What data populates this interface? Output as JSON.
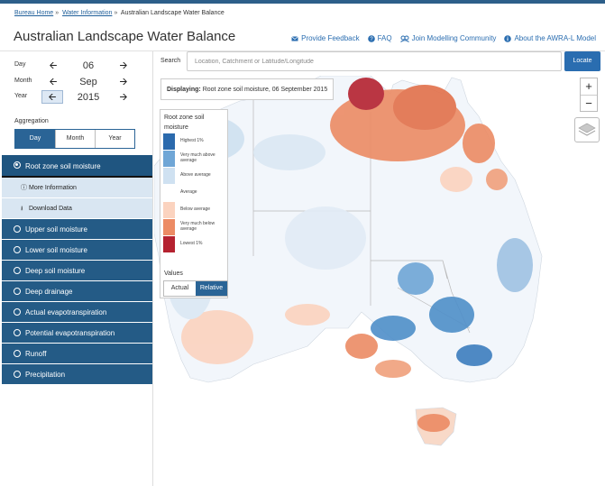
{
  "breadcrumb": {
    "items": [
      "Bureau Home",
      "Water Information",
      "Australian Landscape Water Balance"
    ],
    "separator": "»"
  },
  "page_title": "Australian Landscape Water Balance",
  "header_links": {
    "feedback": "Provide Feedback",
    "faq": "FAQ",
    "community": "Join Modelling Community",
    "about": "About the AWRA-L Model"
  },
  "date": {
    "day_label": "Day",
    "day_value": "06",
    "month_label": "Month",
    "month_value": "Sep",
    "year_label": "Year",
    "year_value": "2015"
  },
  "aggregation": {
    "label": "Aggregation",
    "options": [
      "Day",
      "Month",
      "Year"
    ],
    "selected": "Day"
  },
  "menu": {
    "active": "Root zone soil moisture",
    "sub_items": [
      "More Information",
      "Download Data"
    ],
    "items": [
      "Upper soil moisture",
      "Lower soil moisture",
      "Deep soil moisture",
      "Deep drainage",
      "Actual evapotranspiration",
      "Potential evapotranspiration",
      "Runoff",
      "Precipitation"
    ]
  },
  "search": {
    "label": "Search",
    "placeholder": "Location, Catchment or Latitude/Longitude",
    "button": "Locate"
  },
  "map": {
    "displaying_label": "Displaying:",
    "displaying_value": "Root zone soil moisture, 06 September 2015",
    "zoom_in": "+",
    "zoom_out": "−"
  },
  "legend": {
    "title": "Root zone soil moisture",
    "classes": [
      {
        "label": "Highest 1%",
        "color": "#2b6aad"
      },
      {
        "label": "Very much above average",
        "color": "#6fa6d6"
      },
      {
        "label": "Above average",
        "color": "#cfe1f1"
      },
      {
        "label": "Average",
        "color": "#ffffff"
      },
      {
        "label": "Below average",
        "color": "#fbd3bf"
      },
      {
        "label": "Very much below average",
        "color": "#ec8b64"
      },
      {
        "label": "Lowest 1%",
        "color": "#b52230"
      }
    ],
    "values_label": "Values",
    "values_options": [
      "Actual",
      "Relative"
    ],
    "values_selected": "Relative"
  },
  "colors": {
    "brand": "#245b86",
    "accent": "#2a6db0"
  }
}
